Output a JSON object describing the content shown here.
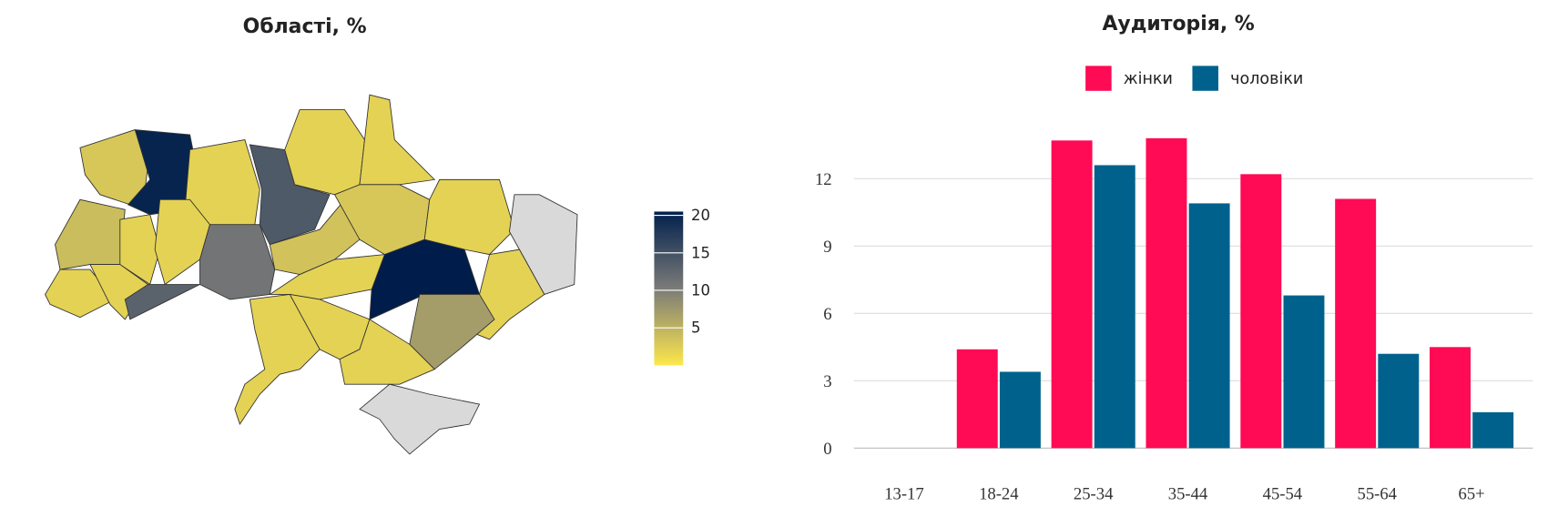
{
  "chart_data": [
    {
      "type": "choropleth",
      "title": "Області, %",
      "values": [
        3,
        20,
        2,
        4,
        14,
        2,
        2,
        4,
        2,
        2,
        2,
        2,
        13,
        11,
        3.5,
        3,
        2,
        null,
        2,
        21,
        7,
        2,
        2,
        2,
        2,
        null
      ],
      "colorlim": [
        0,
        20.5
      ],
      "colorticks": [
        5,
        10,
        15,
        20
      ],
      "colors": [
        "#fde74c",
        "#7b7b78",
        "#00204c"
      ],
      "missing_color": "#d9d9d9"
    },
    {
      "type": "bar",
      "title": "Аудиторія, %",
      "categories": [
        "13-17",
        "18-24",
        "25-34",
        "35-44",
        "45-54",
        "55-64",
        "65+"
      ],
      "series": [
        {
          "name": "жінки",
          "color": "#ff0a54",
          "values": [
            0,
            4.4,
            13.7,
            13.8,
            12.2,
            11.1,
            4.5
          ]
        },
        {
          "name": "чоловіки",
          "color": "#00628c",
          "values": [
            0,
            3.4,
            12.6,
            10.9,
            6.8,
            4.2,
            1.6
          ]
        }
      ],
      "ylim": [
        0,
        15
      ],
      "yticks": [
        0,
        3,
        6,
        9,
        12
      ],
      "grid": true,
      "legend": "top"
    }
  ]
}
